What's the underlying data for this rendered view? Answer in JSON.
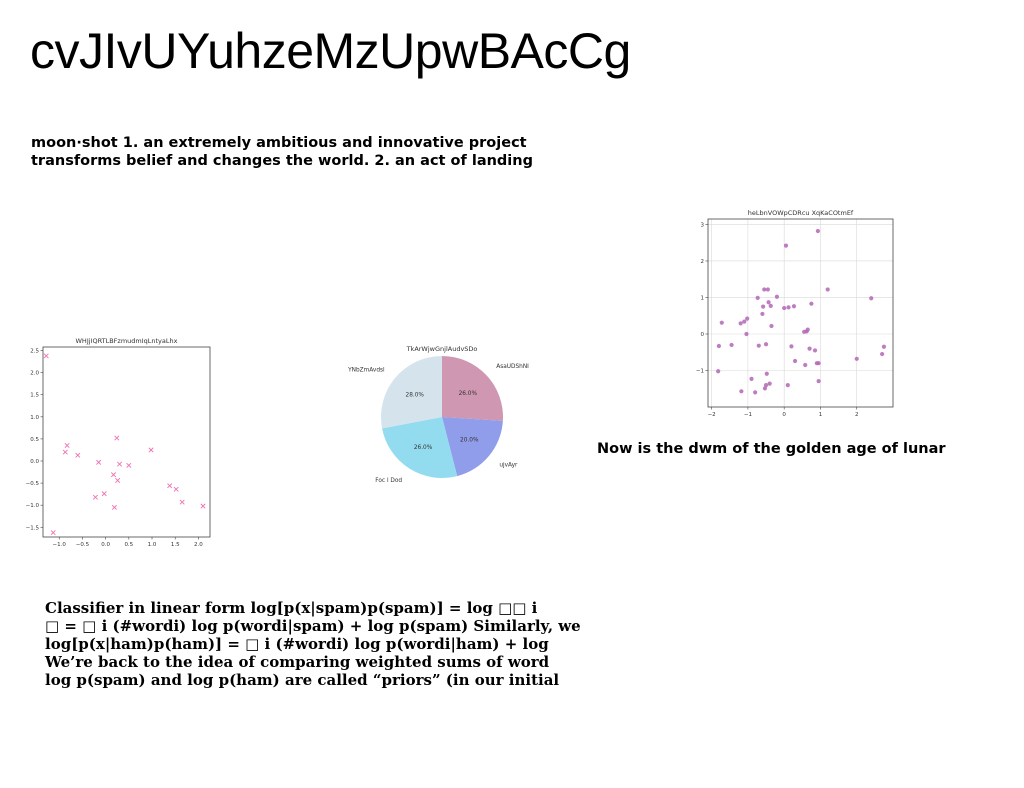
{
  "page": {
    "title": "cvJIvUYuhzeMzUpwBAcCg",
    "definition_lines": [
      "moon·shot 1. an extremely ambitious and innovative project",
      "transforms belief and changes the world. 2. an act of landing"
    ],
    "scatter_caption": "Now is the dwm of the  golden age of lunar",
    "classifier_lines": [
      "Classifier in linear form log[p(x|spam)p(spam)] = log □□ i",
      "□ = □ i (#wordi) log p(wordi|spam) + log p(spam) Similarly, we",
      "log[p(x|ham)p(ham)] = □ i (#wordi) log p(wordi|ham) + log",
      "We’re back to the idea of comparing weighted sums of word",
      "log p(spam) and log p(ham) are called “priors” (in our initial"
    ]
  },
  "chart_data": [
    {
      "type": "scatter",
      "title": "WHJjIQRTLBFzmudmIqLntyaLhx",
      "marker": "x",
      "color": "#f06fb4",
      "grid": false,
      "xlim": [
        -1.35,
        2.25
      ],
      "ylim": [
        -1.72,
        2.58
      ],
      "xticks": [
        "−1.0",
        "−0.5",
        "0.0",
        "0.5",
        "1.0",
        "1.5",
        "2.0"
      ],
      "xtick_values": [
        -1.0,
        -0.5,
        0.0,
        0.5,
        1.0,
        1.5,
        2.0
      ],
      "yticks": [
        "−1.5",
        "−1.0",
        "−0.5",
        "0.0",
        "0.5",
        "1.0",
        "1.5",
        "2.0",
        "2.5"
      ],
      "ytick_values": [
        -1.5,
        -1.0,
        -0.5,
        0.0,
        0.5,
        1.0,
        1.5,
        2.0,
        2.5
      ],
      "x": [
        -1.28,
        -1.13,
        -0.87,
        -0.83,
        -0.6,
        -0.22,
        -0.15,
        -0.03,
        0.17,
        0.19,
        0.24,
        0.26,
        0.3,
        0.5,
        0.98,
        1.38,
        1.52,
        1.65,
        2.1
      ],
      "y": [
        2.38,
        -1.62,
        0.2,
        0.35,
        0.13,
        -0.82,
        -0.03,
        -0.74,
        -0.31,
        -1.05,
        0.52,
        -0.44,
        -0.07,
        -0.1,
        0.25,
        -0.56,
        -0.64,
        -0.93,
        -1.02
      ]
    },
    {
      "type": "pie",
      "title": "TkArWjwGnjlAudvSDo",
      "labels": [
        "AsaUDShNI",
        "ujvAyr",
        "Foc l Dod",
        "YNbZmAvdsl"
      ],
      "values": [
        26.0,
        20.0,
        26.0,
        28.0
      ],
      "value_labels": [
        "26.0%",
        "20.0%",
        "26.0%",
        "28.0%"
      ],
      "colors": [
        "#cf97b1",
        "#8f9dea",
        "#93dcf0",
        "#d5e4ec"
      ]
    },
    {
      "type": "scatter",
      "title": "heLbnVOWpCDRcu XqKaCOtmEf",
      "marker": "o",
      "color": "#b366b5",
      "grid": true,
      "xlim": [
        -2.1,
        3.0
      ],
      "ylim": [
        -2.0,
        3.15
      ],
      "xticks": [
        "−2",
        "−1",
        "0",
        "1",
        "2"
      ],
      "xtick_values": [
        -2,
        -1,
        0,
        1,
        2
      ],
      "yticks": [
        "−1",
        "0",
        "1",
        "2",
        "3"
      ],
      "ytick_values": [
        -1,
        0,
        1,
        2,
        3
      ],
      "x": [
        -1.82,
        -1.8,
        -1.72,
        -1.45,
        -1.2,
        -1.18,
        -1.1,
        -1.04,
        -1.02,
        -0.9,
        -0.8,
        -0.73,
        -0.7,
        -0.6,
        -0.58,
        -0.55,
        -0.53,
        -0.5,
        -0.5,
        -0.48,
        -0.45,
        -0.43,
        -0.4,
        -0.37,
        -0.35,
        -0.2,
        0.0,
        0.05,
        0.1,
        0.12,
        0.2,
        0.27,
        0.3,
        0.55,
        0.58,
        0.62,
        0.65,
        0.7,
        0.75,
        0.85,
        0.9,
        0.93,
        0.95,
        0.95,
        1.2,
        2.0,
        2.4,
        2.7,
        2.75
      ],
      "y": [
        -1.02,
        -0.33,
        0.31,
        -0.3,
        0.29,
        -1.57,
        0.34,
        0.0,
        0.42,
        -1.23,
        -1.6,
        0.99,
        -0.32,
        0.55,
        0.75,
        1.22,
        -1.49,
        -1.4,
        -0.28,
        -1.09,
        1.22,
        0.87,
        -1.36,
        0.77,
        0.22,
        1.02,
        0.71,
        2.42,
        -1.4,
        0.73,
        -0.34,
        0.76,
        -0.74,
        0.06,
        -0.85,
        0.07,
        0.12,
        -0.4,
        0.83,
        -0.45,
        -0.8,
        2.82,
        -1.29,
        -0.8,
        1.22,
        -0.68,
        0.98,
        -0.55,
        -0.35
      ]
    }
  ]
}
